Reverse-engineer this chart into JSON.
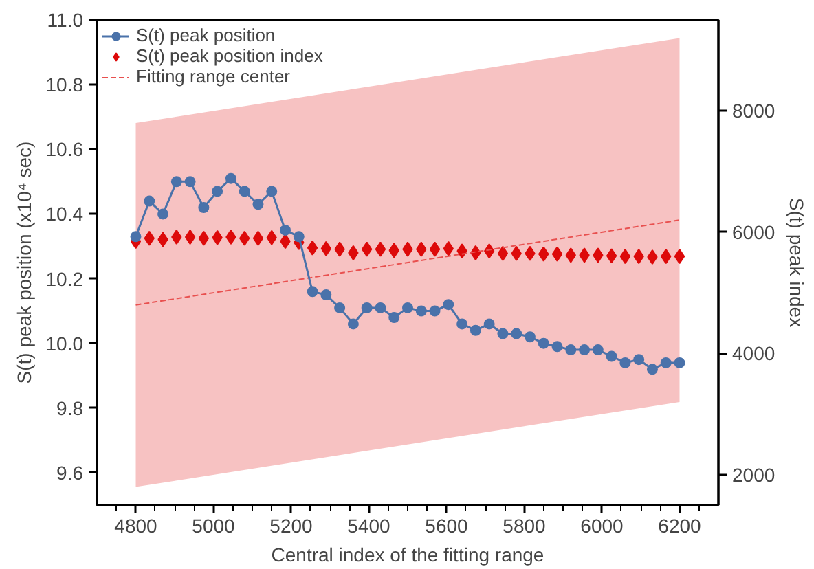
{
  "chart_data": {
    "type": "line",
    "xlabel": "Central index of the fitting range",
    "ylabel": "S(t) peak position (x10⁴ sec)",
    "y2label": "S(t) peak index",
    "x": [
      4800,
      4835,
      4870,
      4905,
      4940,
      4975,
      5010,
      5045,
      5080,
      5115,
      5150,
      5185,
      5220,
      5255,
      5290,
      5325,
      5360,
      5395,
      5430,
      5465,
      5500,
      5535,
      5570,
      5605,
      5640,
      5675,
      5710,
      5745,
      5780,
      5815,
      5850,
      5885,
      5920,
      5955,
      5990,
      6025,
      6060,
      6095,
      6130,
      6165,
      6200
    ],
    "series": [
      {
        "name": "S(t) peak position",
        "marker": "circle",
        "color": "#4a72aa",
        "values": [
          10.33,
          10.44,
          10.4,
          10.5,
          10.5,
          10.42,
          10.47,
          10.51,
          10.47,
          10.43,
          10.47,
          10.35,
          10.33,
          10.16,
          10.15,
          10.11,
          10.06,
          10.11,
          10.11,
          10.08,
          10.11,
          10.1,
          10.1,
          10.12,
          10.06,
          10.04,
          10.06,
          10.03,
          10.03,
          10.02,
          10.0,
          9.99,
          9.98,
          9.98,
          9.98,
          9.96,
          9.94,
          9.95,
          9.92,
          9.94,
          9.94
        ]
      },
      {
        "name": "S(t) peak position index",
        "type": "scatter",
        "marker": "diamond",
        "color": "#dd0a0a",
        "axis": "y2",
        "values": [
          5850,
          5900,
          5880,
          5920,
          5920,
          5900,
          5910,
          5920,
          5900,
          5900,
          5910,
          5850,
          5830,
          5740,
          5730,
          5720,
          5660,
          5720,
          5720,
          5700,
          5720,
          5720,
          5720,
          5730,
          5690,
          5660,
          5690,
          5650,
          5650,
          5650,
          5640,
          5640,
          5620,
          5620,
          5620,
          5610,
          5600,
          5600,
          5590,
          5600,
          5600
        ]
      },
      {
        "name": "Fitting range center",
        "type": "line",
        "line_style": "dashed",
        "color": "#e8504f",
        "axis": "y2",
        "x": [
          4800,
          6200
        ],
        "values": [
          4800,
          6200
        ],
        "lower": [
          1800,
          3200
        ],
        "upper": [
          7800,
          9200
        ]
      }
    ],
    "xlim": [
      4700,
      6300
    ],
    "xticks": [
      {
        "value": 4750,
        "label": null
      },
      4800,
      {
        "value": 4850,
        "label": null
      },
      {
        "value": 4900,
        "label": null
      },
      {
        "value": 4950,
        "label": null
      },
      5000,
      {
        "value": 5050,
        "label": null
      },
      {
        "value": 5100,
        "label": null
      },
      {
        "value": 5150,
        "label": null
      },
      5200,
      {
        "value": 5250,
        "label": null
      },
      {
        "value": 5300,
        "label": null
      },
      {
        "value": 5350,
        "label": null
      },
      5400,
      {
        "value": 5450,
        "label": null
      },
      {
        "value": 5500,
        "label": null
      },
      {
        "value": 5550,
        "label": null
      },
      5600,
      {
        "value": 5650,
        "label": null
      },
      {
        "value": 5700,
        "label": null
      },
      {
        "value": 5750,
        "label": null
      },
      5800,
      {
        "value": 5850,
        "label": null
      },
      {
        "value": 5900,
        "label": null
      },
      {
        "value": 5950,
        "label": null
      },
      6000,
      {
        "value": 6050,
        "label": null
      },
      {
        "value": 6100,
        "label": null
      },
      {
        "value": 6150,
        "label": null
      },
      6200,
      {
        "value": 6250,
        "label": null
      }
    ],
    "ylim": [
      9.5,
      11.0
    ],
    "yticks": [
      9.6,
      9.8,
      {
        "value": 10.0,
        "label": "10.0"
      },
      10.2,
      10.4,
      10.6,
      10.8,
      {
        "value": 11.0,
        "label": "11.0"
      }
    ],
    "y2lim": [
      1500,
      9500
    ],
    "y2ticks": [
      2000,
      4000,
      6000,
      8000
    ],
    "grid": false,
    "legend": "top left"
  }
}
